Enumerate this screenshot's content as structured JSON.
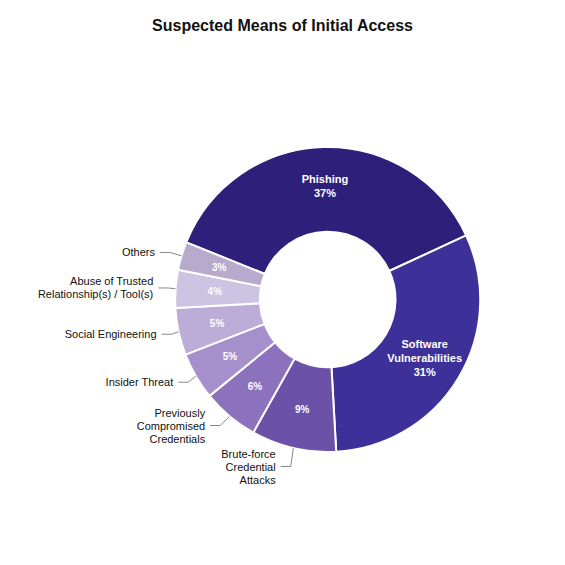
{
  "chart_data": {
    "type": "pie",
    "title": "Suspected Means of Initial Access",
    "categories": [
      "Phishing",
      "Software\nVulnerabilities",
      "Brute-force\nCredential\nAttacks",
      "Previously\nCompromised\nCredentials",
      "Insider Threat",
      "Social Engineering",
      "Abuse of Trusted\nRelationship(s) / Tool(s)",
      "Others"
    ],
    "values": [
      37,
      31,
      9,
      6,
      5,
      5,
      4,
      3
    ],
    "value_labels": [
      "37%",
      "31%",
      "9%",
      "6%",
      "5%",
      "5%",
      "4%",
      "3%"
    ],
    "colors": [
      "#2e1f7a",
      "#3d3099",
      "#6b52a8",
      "#8c72bc",
      "#a690cc",
      "#bcadd8",
      "#cdc4e4",
      "#b8aacc"
    ],
    "data_labels": true
  }
}
